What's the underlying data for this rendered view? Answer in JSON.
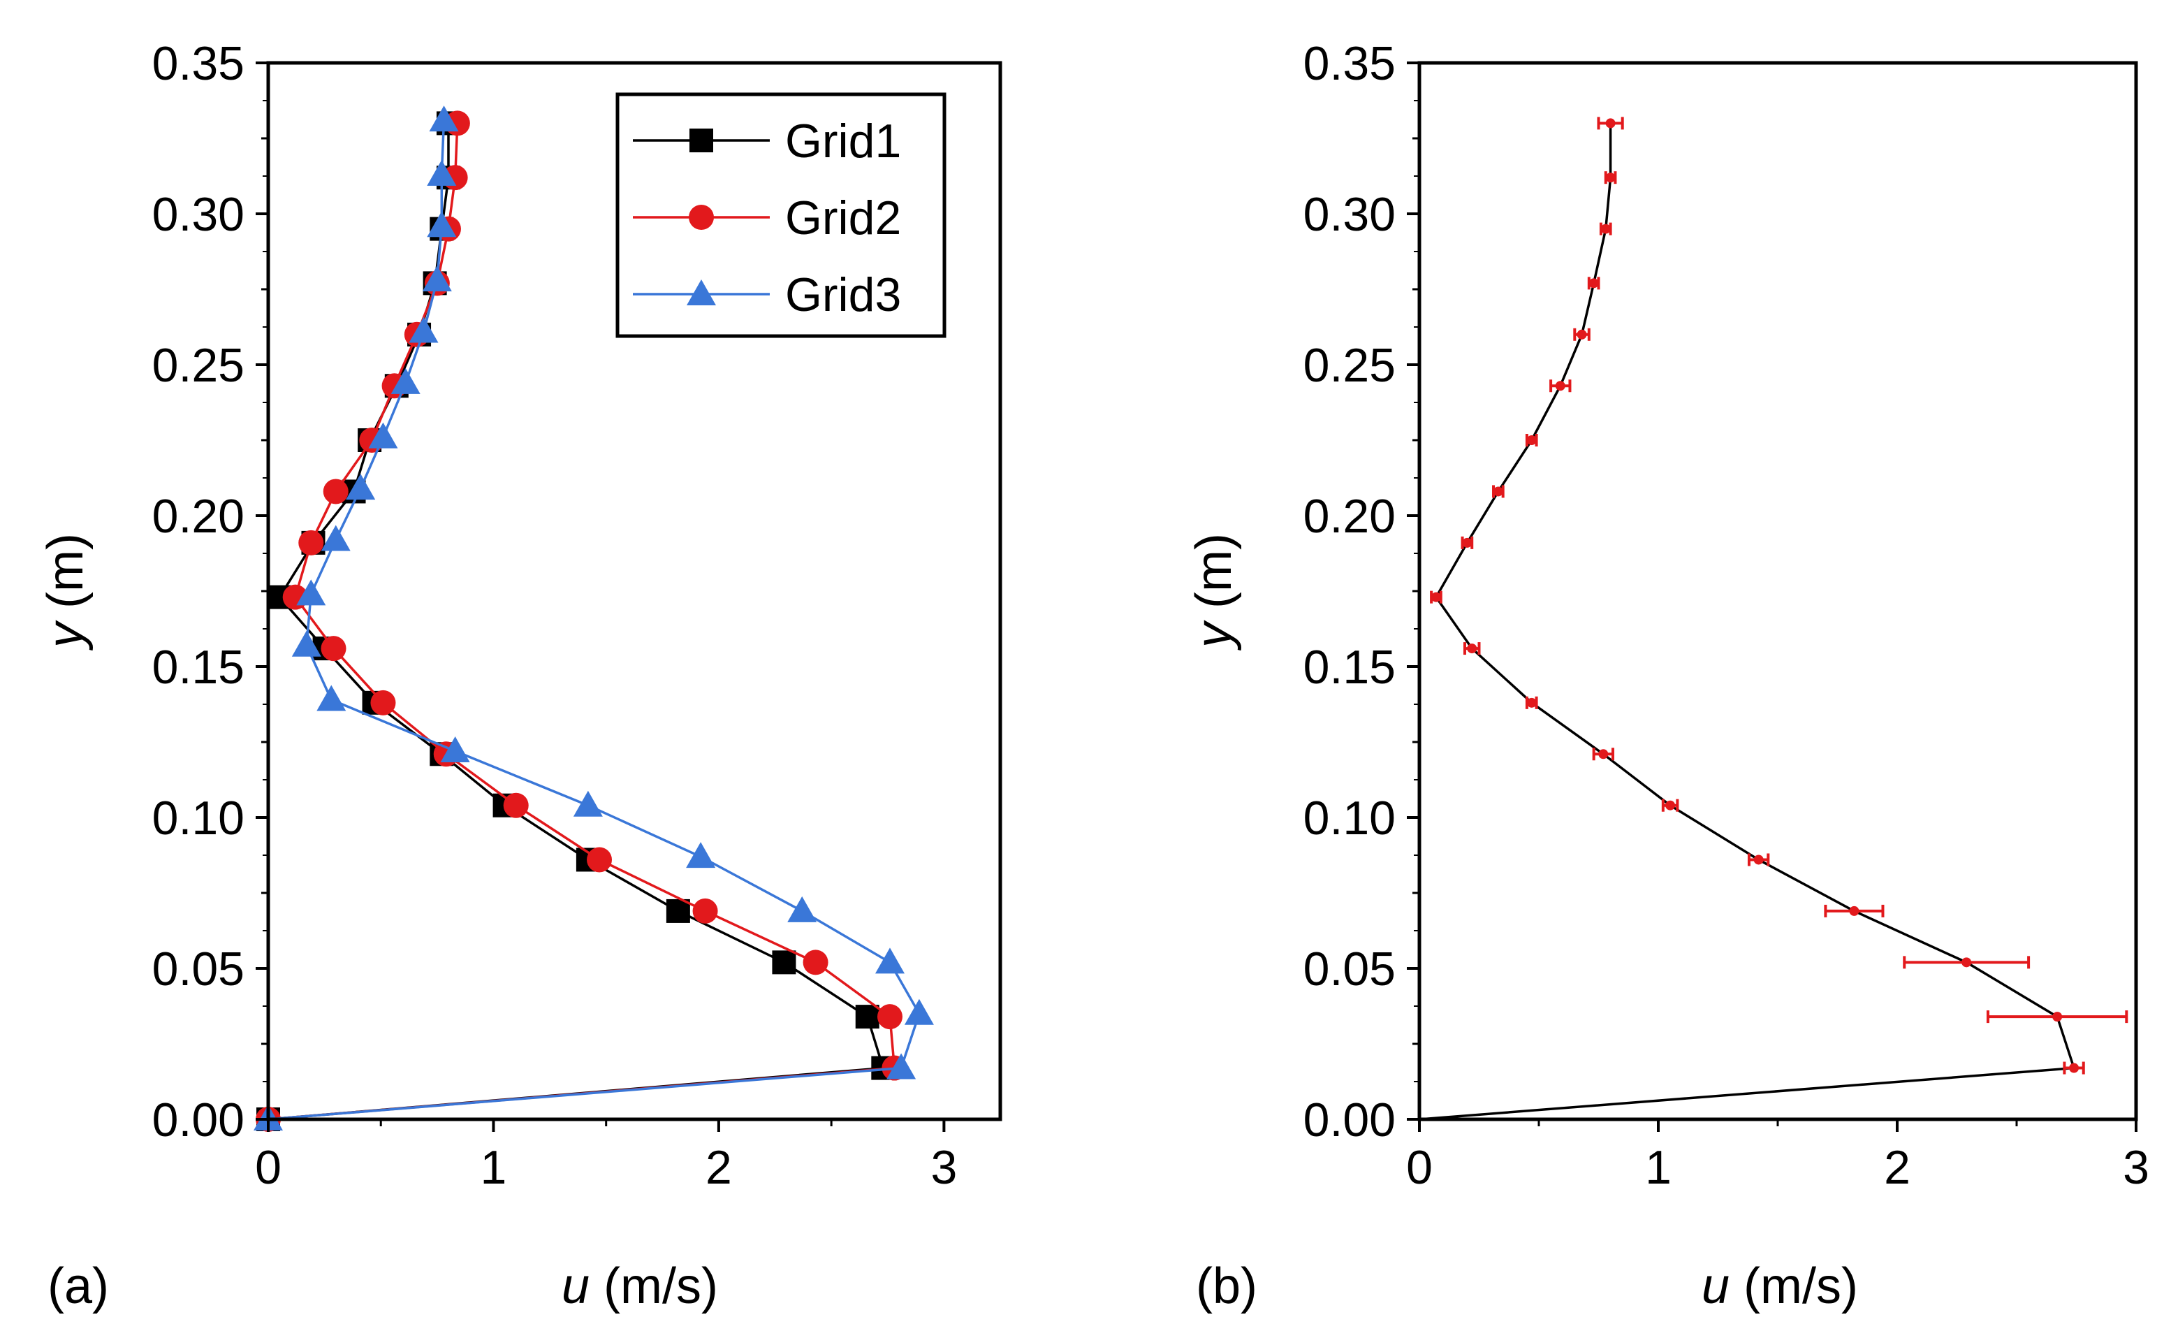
{
  "chart_data": [
    {
      "type": "line",
      "panel_label": "(a)",
      "xlabel": {
        "var": "u",
        "unit": " (m/s)"
      },
      "ylabel": {
        "var": "y",
        "unit": " (m)"
      },
      "xlim": [
        0,
        3.25
      ],
      "ylim": [
        0,
        0.35
      ],
      "xticks": [
        0,
        1,
        2,
        3
      ],
      "yticks": [
        0.0,
        0.05,
        0.1,
        0.15,
        0.2,
        0.25,
        0.3,
        0.35
      ],
      "ytick_labels": [
        "0.00",
        "0.05",
        "0.10",
        "0.15",
        "0.20",
        "0.25",
        "0.30",
        "0.35"
      ],
      "legend": "top-right",
      "series": [
        {
          "name": "Grid1",
          "color": "#000000",
          "marker": "square",
          "x": [
            0.0,
            2.73,
            2.66,
            2.29,
            1.82,
            1.42,
            1.05,
            0.77,
            0.47,
            0.25,
            0.05,
            0.2,
            0.38,
            0.45,
            0.57,
            0.67,
            0.74,
            0.77,
            0.8,
            0.8
          ],
          "y": [
            0.0,
            0.017,
            0.034,
            0.052,
            0.069,
            0.086,
            0.104,
            0.121,
            0.138,
            0.156,
            0.173,
            0.191,
            0.208,
            0.225,
            0.243,
            0.26,
            0.277,
            0.295,
            0.312,
            0.33
          ]
        },
        {
          "name": "Grid2",
          "color": "#e2191c",
          "marker": "circle",
          "x": [
            0.0,
            2.78,
            2.76,
            2.43,
            1.94,
            1.47,
            1.1,
            0.79,
            0.51,
            0.29,
            0.12,
            0.19,
            0.3,
            0.46,
            0.56,
            0.66,
            0.75,
            0.8,
            0.83,
            0.84
          ],
          "y": [
            0.0,
            0.017,
            0.034,
            0.052,
            0.069,
            0.086,
            0.104,
            0.121,
            0.138,
            0.156,
            0.173,
            0.191,
            0.208,
            0.225,
            0.243,
            0.26,
            0.277,
            0.295,
            0.312,
            0.33
          ]
        },
        {
          "name": "Grid3",
          "color": "#3a77d8",
          "marker": "triangle",
          "x": [
            0.0,
            2.81,
            2.89,
            2.76,
            2.37,
            1.92,
            1.42,
            0.83,
            0.28,
            0.17,
            0.19,
            0.3,
            0.41,
            0.51,
            0.61,
            0.69,
            0.75,
            0.77,
            0.77,
            0.78
          ],
          "y": [
            0.0,
            0.017,
            0.035,
            0.052,
            0.069,
            0.087,
            0.104,
            0.122,
            0.139,
            0.157,
            0.174,
            0.192,
            0.209,
            0.226,
            0.244,
            0.261,
            0.278,
            0.296,
            0.313,
            0.331
          ]
        }
      ]
    },
    {
      "type": "line",
      "panel_label": "(b)",
      "xlabel": {
        "var": "u",
        "unit": " (m/s)"
      },
      "ylabel": {
        "var": "y",
        "unit": " (m)"
      },
      "xlim": [
        0,
        3.0
      ],
      "ylim": [
        0,
        0.35
      ],
      "xticks": [
        0,
        1,
        2,
        3
      ],
      "yticks": [
        0.0,
        0.05,
        0.1,
        0.15,
        0.2,
        0.25,
        0.3,
        0.35
      ],
      "ytick_labels": [
        "0.00",
        "0.05",
        "0.10",
        "0.15",
        "0.20",
        "0.25",
        "0.30",
        "0.35"
      ],
      "line_color": "#000000",
      "errorbar_color": "#e2191c",
      "series": [
        {
          "x": [
            0.0,
            2.74,
            2.67,
            2.29,
            1.82,
            1.42,
            1.05,
            0.77,
            0.47,
            0.22,
            0.07,
            0.2,
            0.33,
            0.47,
            0.59,
            0.68,
            0.73,
            0.78,
            0.8,
            0.8
          ],
          "y": [
            0.0,
            0.017,
            0.034,
            0.052,
            0.069,
            0.086,
            0.104,
            0.121,
            0.138,
            0.156,
            0.173,
            0.191,
            0.208,
            0.225,
            0.243,
            0.26,
            0.277,
            0.295,
            0.312,
            0.33
          ],
          "xerr": [
            0.0,
            0.04,
            0.29,
            0.26,
            0.12,
            0.04,
            0.03,
            0.04,
            0.02,
            0.03,
            0.02,
            0.02,
            0.02,
            0.02,
            0.04,
            0.03,
            0.02,
            0.02,
            0.02,
            0.05
          ]
        }
      ]
    }
  ]
}
